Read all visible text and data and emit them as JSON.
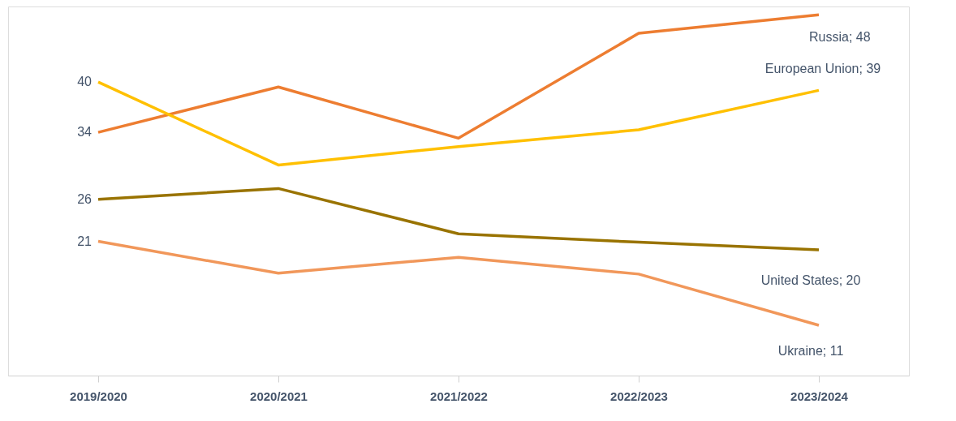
{
  "chart_data": {
    "type": "line",
    "categories": [
      "2019/2020",
      "2020/2021",
      "2021/2022",
      "2022/2023",
      "2023/2024"
    ],
    "ylim": [
      5,
      49
    ],
    "grid": false,
    "legend": false,
    "tick_labels": "x",
    "marker": "none",
    "line_style": "solid",
    "series": [
      {
        "color": "#ed7d31",
        "values": [
          34,
          39.4,
          33.3,
          45.8,
          48
        ],
        "value_labels": [
          "34",
          null,
          null,
          null,
          "Russia; 48"
        ]
      },
      {
        "color": "#ffc000",
        "values": [
          40,
          30.1,
          32.3,
          34.3,
          39
        ],
        "value_labels": [
          "40",
          null,
          null,
          null,
          "European Union; 39"
        ]
      },
      {
        "color": "#997300",
        "values": [
          26,
          27.3,
          21.9,
          20.9,
          20
        ],
        "value_labels": [
          "26",
          null,
          null,
          null,
          "United States; 20"
        ]
      },
      {
        "color": "#f1975a",
        "values": [
          21,
          17.2,
          19.1,
          17.1,
          11
        ],
        "value_labels": [
          "21",
          null,
          null,
          null,
          "Ukraine; 11"
        ]
      }
    ]
  }
}
